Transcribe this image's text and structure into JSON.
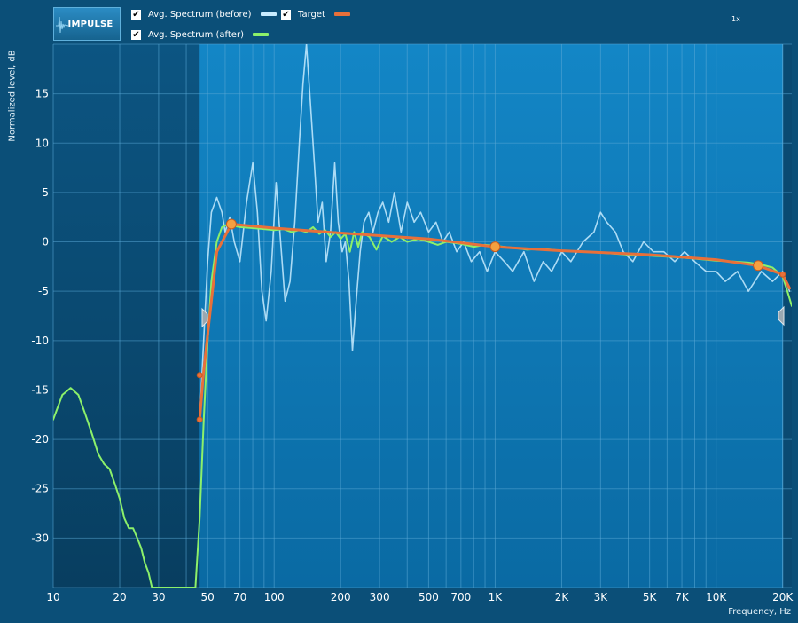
{
  "toolbar": {
    "impulse_label": "IMPULSE",
    "zoom_label": "1x"
  },
  "legend": [
    {
      "label": "Avg. Spectrum (before)",
      "checked": true,
      "color": "#c8ecff"
    },
    {
      "label": "Target",
      "checked": true,
      "color": "#e8703a"
    },
    {
      "label": "Avg. Spectrum (after)",
      "checked": true,
      "color": "#8cf06a"
    }
  ],
  "chart_data": {
    "type": "line",
    "xlabel": "Frequency, Hz",
    "ylabel": "Normalized level, dB",
    "xscale": "log",
    "xlim": [
      10,
      22000
    ],
    "ylim": [
      -35,
      20
    ],
    "x_ticks": [
      10,
      20,
      30,
      50,
      70,
      100,
      200,
      300,
      500,
      700,
      1000,
      2000,
      3000,
      5000,
      7000,
      10000,
      20000
    ],
    "x_tick_labels": [
      "10",
      "20",
      "30",
      "50",
      "70",
      "100",
      "200",
      "300",
      "500",
      "700",
      "1K",
      "2K",
      "3K",
      "5K",
      "7K",
      "10K",
      "20K"
    ],
    "y_ticks": [
      15,
      10,
      5,
      0,
      -5,
      -10,
      -15,
      -20,
      -25,
      -30
    ],
    "y_tick_labels": [
      "15",
      "10",
      "5",
      "0",
      "-5",
      "-10",
      "-15",
      "-20",
      "-25",
      "-30"
    ],
    "excluded_band_below_hz": 46,
    "colors": {
      "plot_bg": "#0f7fbd",
      "excluded_bg": "#0a4a72",
      "grid": "#5aa8d6",
      "before": "#c8ecff",
      "after": "#8cf06a",
      "target": "#e8703a",
      "target_point": "#f5a040"
    },
    "series": [
      {
        "name": "Avg. Spectrum (before)",
        "points": [
          [
            46,
            -18
          ],
          [
            50,
            -2
          ],
          [
            52,
            3
          ],
          [
            55,
            4.5
          ],
          [
            58,
            3
          ],
          [
            60,
            1
          ],
          [
            63,
            2.5
          ],
          [
            66,
            0
          ],
          [
            70,
            -2
          ],
          [
            75,
            4
          ],
          [
            80,
            8
          ],
          [
            84,
            3
          ],
          [
            88,
            -5
          ],
          [
            92,
            -8
          ],
          [
            97,
            -3
          ],
          [
            102,
            6
          ],
          [
            107,
            0
          ],
          [
            112,
            -6
          ],
          [
            118,
            -4
          ],
          [
            124,
            2
          ],
          [
            130,
            10
          ],
          [
            135,
            16
          ],
          [
            140,
            20
          ],
          [
            145,
            15
          ],
          [
            152,
            8
          ],
          [
            158,
            2
          ],
          [
            165,
            4
          ],
          [
            172,
            -2
          ],
          [
            180,
            1
          ],
          [
            188,
            8
          ],
          [
            195,
            2
          ],
          [
            203,
            -1
          ],
          [
            210,
            0
          ],
          [
            218,
            -4
          ],
          [
            226,
            -11
          ],
          [
            235,
            -6
          ],
          [
            245,
            -1
          ],
          [
            255,
            2
          ],
          [
            268,
            3
          ],
          [
            280,
            1
          ],
          [
            295,
            3
          ],
          [
            310,
            4
          ],
          [
            330,
            2
          ],
          [
            350,
            5
          ],
          [
            375,
            1
          ],
          [
            400,
            4
          ],
          [
            430,
            2
          ],
          [
            460,
            3
          ],
          [
            500,
            1
          ],
          [
            540,
            2
          ],
          [
            580,
            0
          ],
          [
            620,
            1
          ],
          [
            670,
            -1
          ],
          [
            720,
            0
          ],
          [
            780,
            -2
          ],
          [
            850,
            -1
          ],
          [
            920,
            -3
          ],
          [
            1000,
            -1
          ],
          [
            1100,
            -2
          ],
          [
            1200,
            -3
          ],
          [
            1350,
            -1
          ],
          [
            1500,
            -4
          ],
          [
            1650,
            -2
          ],
          [
            1800,
            -3
          ],
          [
            2000,
            -1
          ],
          [
            2200,
            -2
          ],
          [
            2500,
            0
          ],
          [
            2800,
            1
          ],
          [
            3000,
            3
          ],
          [
            3200,
            2
          ],
          [
            3500,
            1
          ],
          [
            3800,
            -1
          ],
          [
            4200,
            -2
          ],
          [
            4700,
            0
          ],
          [
            5200,
            -1
          ],
          [
            5800,
            -1
          ],
          [
            6500,
            -2
          ],
          [
            7200,
            -1
          ],
          [
            8000,
            -2
          ],
          [
            9000,
            -3
          ],
          [
            10000,
            -3
          ],
          [
            11000,
            -4
          ],
          [
            12500,
            -3
          ],
          [
            14000,
            -5
          ],
          [
            16000,
            -3
          ],
          [
            18000,
            -4
          ],
          [
            20000,
            -3
          ],
          [
            21500,
            -5
          ]
        ]
      },
      {
        "name": "Avg. Spectrum (after)",
        "points": [
          [
            10,
            -18
          ],
          [
            11,
            -15.5
          ],
          [
            12,
            -14.8
          ],
          [
            13,
            -15.5
          ],
          [
            14,
            -17.5
          ],
          [
            15,
            -19.5
          ],
          [
            16,
            -21.5
          ],
          [
            17,
            -22.5
          ],
          [
            18,
            -23
          ],
          [
            19,
            -24.5
          ],
          [
            20,
            -26
          ],
          [
            21,
            -28
          ],
          [
            22,
            -29
          ],
          [
            23,
            -29
          ],
          [
            24,
            -30
          ],
          [
            25,
            -31
          ],
          [
            26,
            -32.5
          ],
          [
            27,
            -33.5
          ],
          [
            28,
            -35
          ],
          [
            44,
            -35
          ],
          [
            46,
            -28
          ],
          [
            48,
            -18
          ],
          [
            50,
            -10
          ],
          [
            52,
            -4
          ],
          [
            55,
            0
          ],
          [
            58,
            1.5
          ],
          [
            62,
            1.8
          ],
          [
            66,
            1.6
          ],
          [
            70,
            1.5
          ],
          [
            80,
            1.4
          ],
          [
            90,
            1.3
          ],
          [
            100,
            1.2
          ],
          [
            110,
            1.3
          ],
          [
            120,
            1
          ],
          [
            130,
            1.2
          ],
          [
            140,
            1
          ],
          [
            150,
            1.5
          ],
          [
            160,
            0.8
          ],
          [
            170,
            1.2
          ],
          [
            180,
            0.5
          ],
          [
            190,
            1
          ],
          [
            200,
            0.3
          ],
          [
            210,
            0.8
          ],
          [
            220,
            -1
          ],
          [
            230,
            1
          ],
          [
            240,
            -0.5
          ],
          [
            250,
            1
          ],
          [
            270,
            0.5
          ],
          [
            290,
            -0.8
          ],
          [
            310,
            0.6
          ],
          [
            340,
            0
          ],
          [
            370,
            0.5
          ],
          [
            400,
            0
          ],
          [
            450,
            0.3
          ],
          [
            500,
            0
          ],
          [
            550,
            -0.3
          ],
          [
            600,
            0
          ],
          [
            700,
            -0.2
          ],
          [
            800,
            -0.5
          ],
          [
            900,
            -0.3
          ],
          [
            1000,
            -0.4
          ],
          [
            1200,
            -0.6
          ],
          [
            1400,
            -0.8
          ],
          [
            1600,
            -0.7
          ],
          [
            2000,
            -0.9
          ],
          [
            2500,
            -1
          ],
          [
            3000,
            -1.1
          ],
          [
            3500,
            -1.2
          ],
          [
            4000,
            -1.3
          ],
          [
            5000,
            -1.4
          ],
          [
            6000,
            -1.5
          ],
          [
            7000,
            -1.6
          ],
          [
            8000,
            -1.7
          ],
          [
            10000,
            -1.9
          ],
          [
            12000,
            -2
          ],
          [
            14000,
            -2.1
          ],
          [
            16000,
            -2.3
          ],
          [
            18000,
            -2.6
          ],
          [
            20000,
            -3.5
          ],
          [
            21000,
            -5
          ],
          [
            22000,
            -6.5
          ]
        ]
      },
      {
        "name": "Target",
        "points": [
          [
            46,
            -18
          ],
          [
            48,
            -13
          ],
          [
            55,
            -1
          ],
          [
            64,
            1.8
          ],
          [
            100,
            1.4
          ],
          [
            200,
            0.9
          ],
          [
            500,
            0.3
          ],
          [
            1000,
            -0.5
          ],
          [
            2000,
            -0.9
          ],
          [
            5000,
            -1.3
          ],
          [
            10000,
            -1.8
          ],
          [
            15500,
            -2.4
          ],
          [
            20000,
            -3.3
          ],
          [
            21500,
            -4.7
          ]
        ]
      }
    ],
    "target_control_points": [
      [
        64,
        1.8
      ],
      [
        1000,
        -0.5
      ],
      [
        15500,
        -2.4
      ]
    ],
    "target_small_points": [
      [
        46,
        -18
      ],
      [
        46,
        -13.5
      ],
      [
        20000,
        -3.3
      ]
    ]
  }
}
